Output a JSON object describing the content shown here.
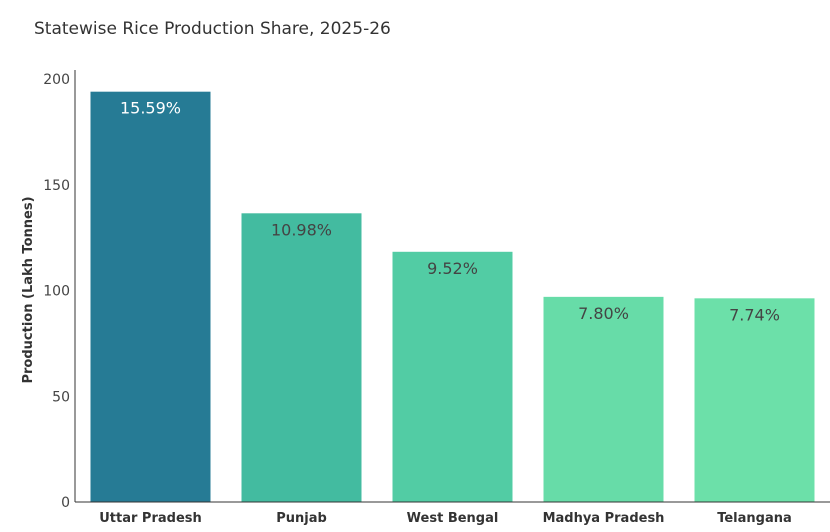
{
  "chart_data": {
    "type": "bar",
    "title": "Statewise Rice Production Share, 2025-26",
    "xlabel": "",
    "ylabel": "Production (Lakh Tonnes)",
    "ylim": [
      0,
      200
    ],
    "yticks": [
      0,
      50,
      100,
      150,
      200
    ],
    "grid": false,
    "categories": [
      "Uttar Pradesh",
      "Punjab",
      "West Bengal",
      "Madhya Pradesh",
      "Telangana"
    ],
    "values": [
      194,
      136.5,
      118.3,
      97,
      96.3
    ],
    "data_labels": [
      "15.59%",
      "10.98%",
      "9.52%",
      "7.80%",
      "7.74%"
    ],
    "colors": [
      "#267b95",
      "#43bba0",
      "#52cca4",
      "#67dca8",
      "#6ce0a9"
    ],
    "label_colors": [
      "#ffffff",
      "#444444",
      "#444444",
      "#444444",
      "#444444"
    ]
  }
}
